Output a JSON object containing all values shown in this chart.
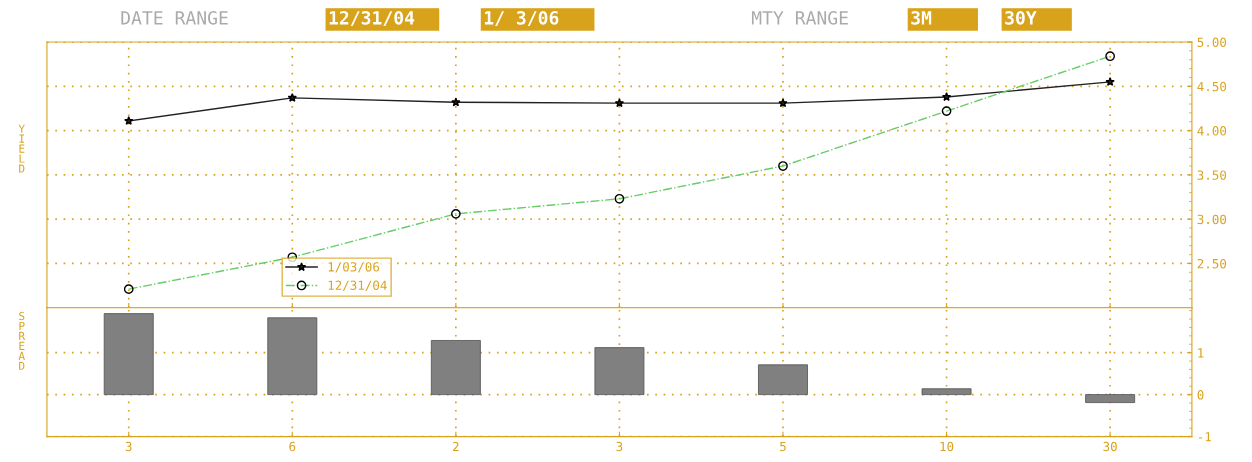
{
  "chart_data": [
    {
      "type": "line",
      "ylabel": "YIELD",
      "annotations": [
        "DATE RANGE",
        "12/31/04",
        "1/ 3/06",
        "MTY RANGE",
        "3M",
        "30Y"
      ],
      "categories": [
        "3",
        "6",
        "2",
        "3",
        "5",
        "10",
        "30"
      ],
      "ylim": [
        2.0,
        5.0
      ],
      "yticks": [
        {
          "value": 2.5,
          "label": "2.50"
        },
        {
          "value": 3.0,
          "label": "3.00"
        },
        {
          "value": 3.5,
          "label": "3.50"
        },
        {
          "value": 4.0,
          "label": "4.00"
        },
        {
          "value": 4.5,
          "label": "4.50"
        },
        {
          "value": 5.0,
          "label": "5.00"
        }
      ],
      "tick_labels": "y",
      "grid": true,
      "legend": "bottom left",
      "series": [
        {
          "name": "1/03/06",
          "color": "#222222",
          "marker": "star",
          "line_style": "solid",
          "values": [
            4.11,
            4.37,
            4.32,
            4.31,
            4.31,
            4.38,
            4.55
          ]
        },
        {
          "name": "12/31/04",
          "color": "#66cc66",
          "marker": "circle",
          "line_style": "dashdot",
          "values": [
            2.21,
            2.57,
            3.06,
            3.23,
            3.6,
            4.22,
            4.84
          ]
        }
      ]
    },
    {
      "type": "bar",
      "ylabel": "SPREAD",
      "categories": [
        "3",
        "6",
        "2",
        "3",
        "5",
        "10",
        "30"
      ],
      "ylim": [
        -1,
        2.07
      ],
      "yticks": [
        -1,
        0,
        1
      ],
      "grid": true,
      "color": "#808080",
      "values": [
        1.93,
        1.83,
        1.29,
        1.12,
        0.71,
        0.14,
        -0.19
      ]
    }
  ]
}
